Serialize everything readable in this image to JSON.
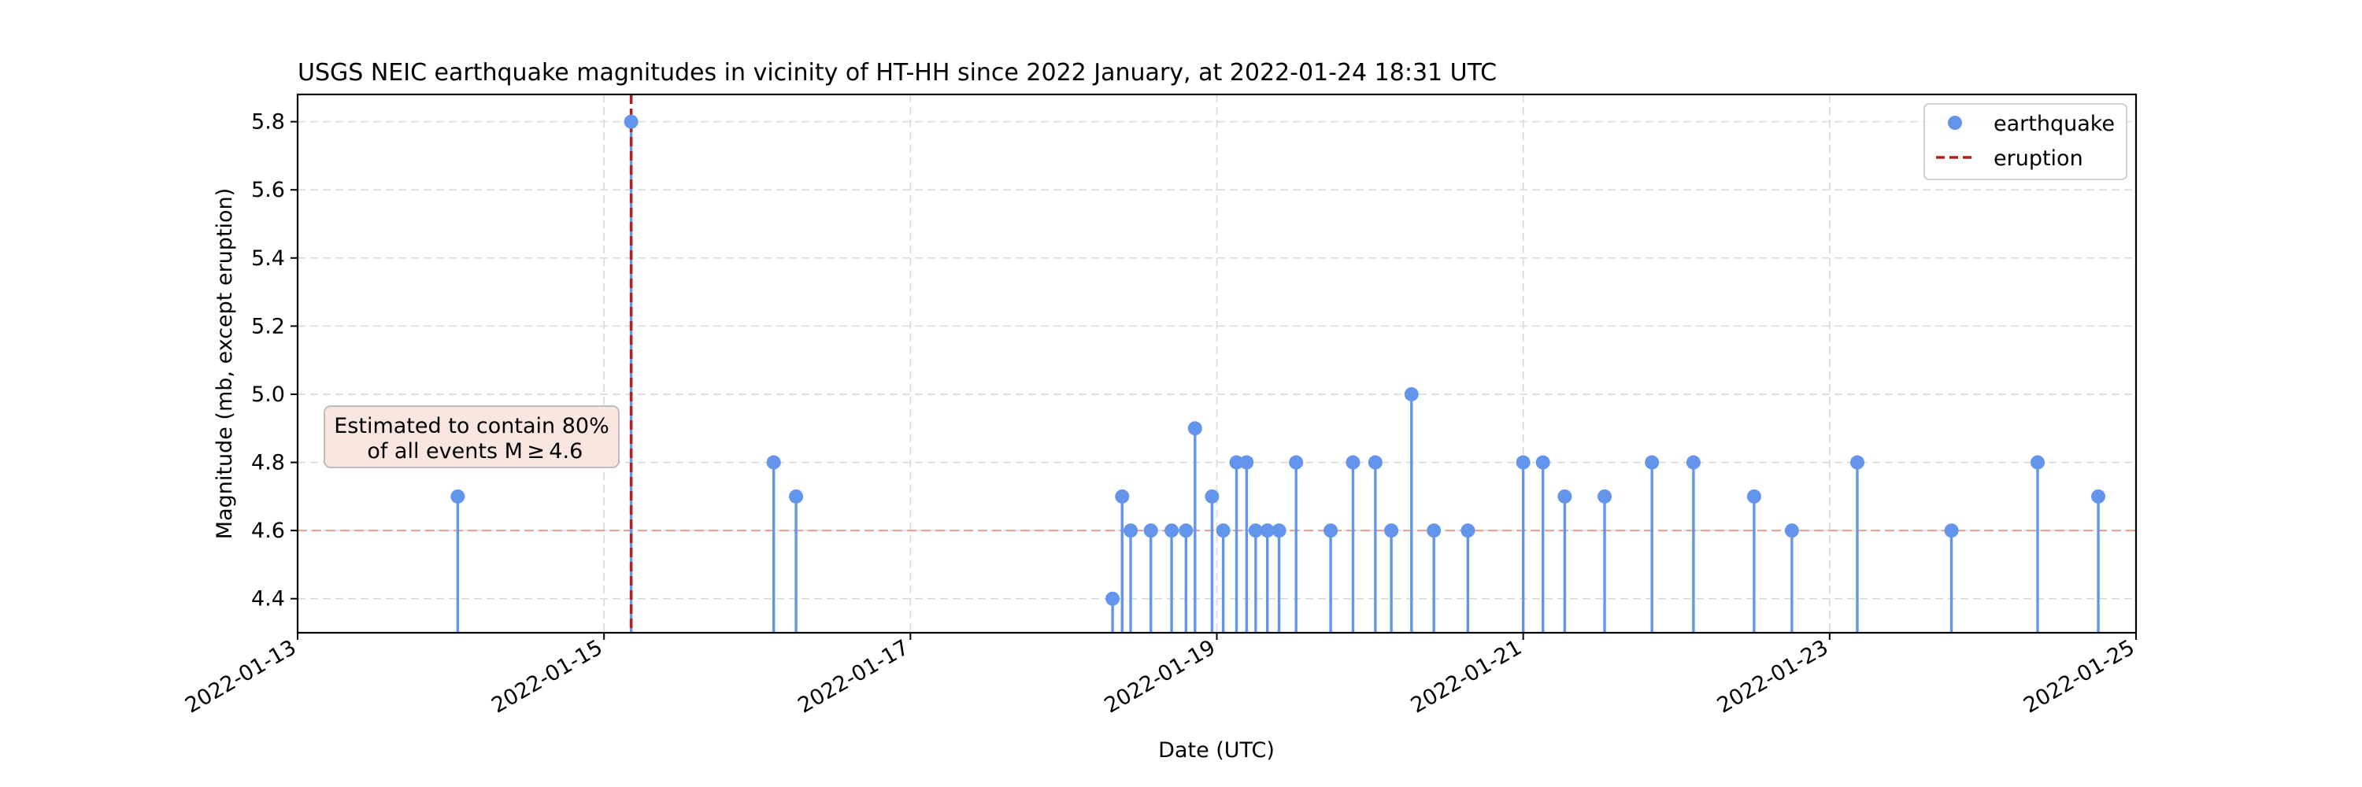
{
  "chart_data": {
    "type": "stem",
    "title": "USGS NEIC earthquake magnitudes in vicinity of HT-HH since 2022 January, at 2022-01-24 18:31 UTC",
    "xlabel": "Date (UTC)",
    "ylabel": "Magnitude (mb, except eruption)",
    "xlim": [
      "2022-01-13T00:00",
      "2022-01-25T00:00"
    ],
    "ylim": [
      4.3,
      5.88
    ],
    "x_ticks": [
      "2022-01-13",
      "2022-01-15",
      "2022-01-17",
      "2022-01-19",
      "2022-01-21",
      "2022-01-23",
      "2022-01-25"
    ],
    "y_ticks": [
      "4.4",
      "4.6",
      "4.8",
      "5.0",
      "5.2",
      "5.4",
      "5.6",
      "5.8"
    ],
    "grid": true,
    "legend": {
      "position": "top-right",
      "entries": [
        {
          "label": "earthquake",
          "color": "#6495ED",
          "marker": "circle"
        },
        {
          "label": "eruption",
          "color": "#B22222",
          "marker": "dashed-line"
        }
      ]
    },
    "eruption": {
      "time": "2022-01-15T04:15",
      "color": "#B22222"
    },
    "threshold_line": {
      "value": 4.6,
      "color": "#E8A598"
    },
    "annotation": {
      "line1": "Estimated to contain 80%",
      "line2": " of all events M ≥ 4.6"
    },
    "series": [
      {
        "name": "earthquake",
        "color": "#6495ED",
        "points": [
          {
            "t": "2022-01-14T01:05",
            "mag": 4.7
          },
          {
            "t": "2022-01-15T04:15",
            "mag": 5.8
          },
          {
            "t": "2022-01-16T02:35",
            "mag": 4.8
          },
          {
            "t": "2022-01-16T06:05",
            "mag": 4.7
          },
          {
            "t": "2022-01-18T07:40",
            "mag": 4.4
          },
          {
            "t": "2022-01-18T09:10",
            "mag": 4.7
          },
          {
            "t": "2022-01-18T10:30",
            "mag": 4.6
          },
          {
            "t": "2022-01-18T13:40",
            "mag": 4.6
          },
          {
            "t": "2022-01-18T16:55",
            "mag": 4.6
          },
          {
            "t": "2022-01-18T19:10",
            "mag": 4.6
          },
          {
            "t": "2022-01-18T20:35",
            "mag": 4.9
          },
          {
            "t": "2022-01-18T23:15",
            "mag": 4.7
          },
          {
            "t": "2022-01-19T01:00",
            "mag": 4.6
          },
          {
            "t": "2022-01-19T03:05",
            "mag": 4.8
          },
          {
            "t": "2022-01-19T04:40",
            "mag": 4.8
          },
          {
            "t": "2022-01-19T06:05",
            "mag": 4.6
          },
          {
            "t": "2022-01-19T07:55",
            "mag": 4.6
          },
          {
            "t": "2022-01-19T09:45",
            "mag": 4.6
          },
          {
            "t": "2022-01-19T12:25",
            "mag": 4.8
          },
          {
            "t": "2022-01-19T17:50",
            "mag": 4.6
          },
          {
            "t": "2022-01-19T21:20",
            "mag": 4.8
          },
          {
            "t": "2022-01-20T00:50",
            "mag": 4.8
          },
          {
            "t": "2022-01-20T03:20",
            "mag": 4.6
          },
          {
            "t": "2022-01-20T06:30",
            "mag": 5.0
          },
          {
            "t": "2022-01-20T10:00",
            "mag": 4.6
          },
          {
            "t": "2022-01-20T15:20",
            "mag": 4.6
          },
          {
            "t": "2022-01-21T00:00",
            "mag": 4.8
          },
          {
            "t": "2022-01-21T03:05",
            "mag": 4.8
          },
          {
            "t": "2022-01-21T06:30",
            "mag": 4.7
          },
          {
            "t": "2022-01-21T12:45",
            "mag": 4.7
          },
          {
            "t": "2022-01-21T20:10",
            "mag": 4.8
          },
          {
            "t": "2022-01-22T02:40",
            "mag": 4.8
          },
          {
            "t": "2022-01-22T12:10",
            "mag": 4.7
          },
          {
            "t": "2022-01-22T18:05",
            "mag": 4.6
          },
          {
            "t": "2022-01-23T04:20",
            "mag": 4.8
          },
          {
            "t": "2022-01-23T19:05",
            "mag": 4.6
          },
          {
            "t": "2022-01-24T08:35",
            "mag": 4.8
          },
          {
            "t": "2022-01-24T18:05",
            "mag": 4.7
          }
        ]
      }
    ]
  }
}
